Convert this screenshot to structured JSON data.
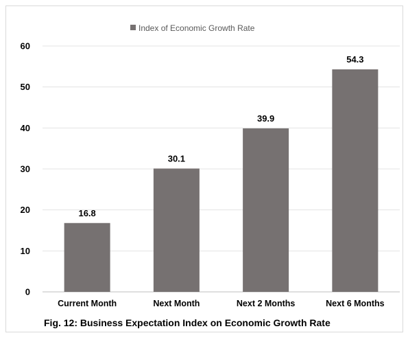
{
  "chart_data": {
    "type": "bar",
    "categories": [
      "Current Month",
      "Next Month",
      "Next 2 Months",
      "Next 6 Months"
    ],
    "series": [
      {
        "name": "Index of Economic Growth Rate",
        "values": [
          16.8,
          30.1,
          39.9,
          54.3
        ]
      }
    ],
    "data_labels": [
      "16.8",
      "30.1",
      "39.9",
      "54.3"
    ],
    "yticks": [
      "0",
      "10",
      "20",
      "30",
      "40",
      "50",
      "60"
    ],
    "ylim": [
      0,
      60
    ],
    "grid": true,
    "legend_position": "top",
    "bar_color": "#767171",
    "caption": "Fig. 12: Business Expectation Index on Economic Growth Rate"
  }
}
